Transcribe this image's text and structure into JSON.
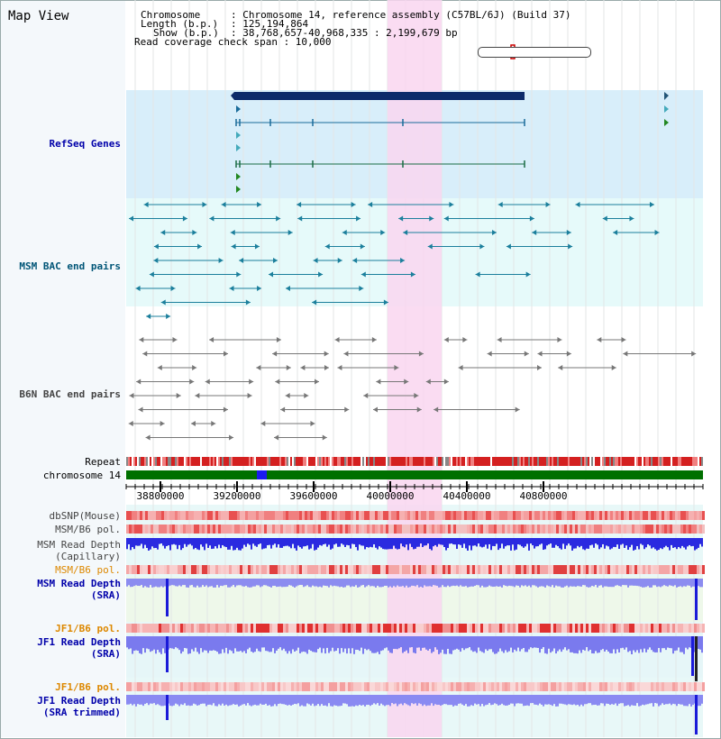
{
  "title": "Map View",
  "info": {
    "chromosome_key": "Chromosome",
    "chromosome_val": ": Chromosome 14, reference assembly (C57BL/6J) (Build 37)",
    "length_key": "Length (b.p.)",
    "length_val": ": 125,194,864",
    "show_key": "Show (b.p.)",
    "show_val": ": 38,768,657-40,968,335 : 2,199,679 bp",
    "coverage": "Read coverage check span : 10,000"
  },
  "tracks": {
    "refseq": "RefSeq Genes",
    "msm_bac": "MSM BAC end pairs",
    "b6n_bac": "B6N BAC end pairs",
    "repeat": "Repeat",
    "chromosome": "chromosome 14",
    "dbsnp": "dbSNP(Mouse)",
    "msm_b6_pol_1": "MSM/B6 pol.",
    "msm_read_depth_cap_1": "MSM Read Depth",
    "msm_read_depth_cap_2": "(Capillary)",
    "msm_b6_pol_2": "MSM/B6 pol.",
    "msm_read_depth_sra_1": "MSM Read Depth",
    "msm_read_depth_sra_2": "(SRA)",
    "jf1_b6_pol_1": "JF1/B6 pol.",
    "jf1_read_depth_sra_1": "JF1 Read Depth",
    "jf1_read_depth_sra_2": "(SRA)",
    "jf1_b6_pol_2": "JF1/B6 pol.",
    "jf1_read_depth_trim_1": "JF1 Read Depth",
    "jf1_read_depth_trim_2": "(SRA trimmed)"
  },
  "axis_ticks": [
    "38800000",
    "39200000",
    "39600000",
    "40000000",
    "40400000",
    "40800000"
  ],
  "colors": {
    "label_blue": "#0000aa",
    "label_teal": "#005577",
    "label_gray": "#444444",
    "label_orange": "#dd8800",
    "highlight": "#f9d6f0",
    "refseq_bg": "#d8eefa",
    "msm_bg": "#e6fafa"
  }
}
